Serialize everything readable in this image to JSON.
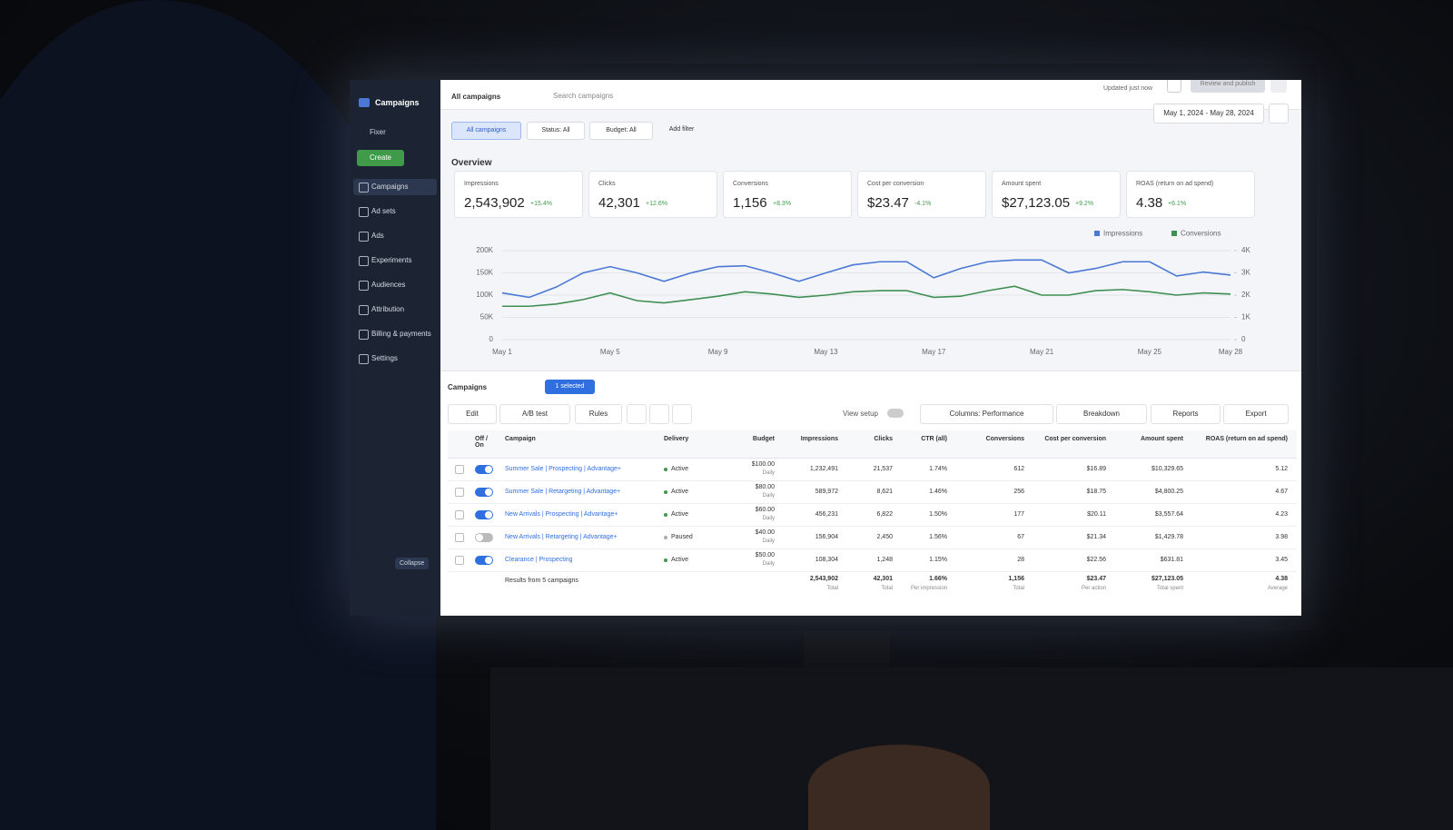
{
  "sidebar": {
    "brand": "Campaigns",
    "account": "Fixer",
    "create": "Create",
    "nav": [
      "Campaigns",
      "Ad sets",
      "Ads",
      "Experiments",
      "Audiences",
      "Attribution",
      "Billing & payments",
      "Settings"
    ],
    "collapse": "Collapse"
  },
  "topbar": {
    "title": "All campaigns",
    "search": "Search campaigns",
    "updated": "Updated just now",
    "publish": "Review and publish"
  },
  "filters": {
    "items": [
      "All campaigns",
      "Status: All",
      "Budget: All",
      "Add filter"
    ],
    "date_range": "May 1, 2024 - May 28, 2024"
  },
  "overview": {
    "title": "Overview",
    "metrics": [
      {
        "label": "Impressions",
        "value": "2,543,902",
        "change": "+15.4%"
      },
      {
        "label": "Clicks",
        "value": "42,301",
        "change": "+12.6%"
      },
      {
        "label": "Conversions",
        "value": "1,156",
        "change": "+8.3%"
      },
      {
        "label": "Cost per conversion",
        "value": "$23.47",
        "change": "-4.1%"
      },
      {
        "label": "Amount spent",
        "value": "$27,123.05",
        "change": "+9.2%"
      },
      {
        "label": "ROAS (return on ad spend)",
        "value": "4.38",
        "change": "+6.1%"
      }
    ]
  },
  "chart_data": {
    "type": "line",
    "categories": [
      "May 1",
      null,
      null,
      null,
      "May 5",
      null,
      null,
      null,
      "May 9",
      null,
      null,
      null,
      "May 13",
      null,
      null,
      null,
      "May 17",
      null,
      null,
      null,
      "May 21",
      null,
      null,
      null,
      "May 25",
      null,
      null,
      "May 28"
    ],
    "series": [
      {
        "name": "Impressions",
        "color": "#4a78d4",
        "values": [
          105000,
          95000,
          118000,
          150000,
          164000,
          150000,
          131000,
          150000,
          164000,
          166000,
          150000,
          131000,
          150000,
          168000,
          175000,
          175000,
          139000,
          160000,
          175000,
          179000,
          179000,
          150000,
          160000,
          175000,
          175000,
          143000,
          152000,
          145000
        ]
      },
      {
        "name": "Conversions",
        "color": "#3f8f53",
        "axis": "y2",
        "values": [
          1500,
          1500,
          1600,
          1800,
          2100,
          1750,
          1650,
          1800,
          1950,
          2150,
          2050,
          1900,
          2000,
          2150,
          2200,
          2200,
          1900,
          1950,
          2200,
          2400,
          2000,
          2000,
          2200,
          2250,
          2150,
          2000,
          2100,
          2050
        ]
      }
    ],
    "ylim": [
      0,
      200000
    ],
    "yticks": [
      0,
      {
        "value": 50000,
        "label": "50K"
      },
      {
        "value": 100000,
        "label": "100K"
      },
      {
        "value": 150000,
        "label": "150K"
      },
      {
        "value": 200000,
        "label": "200K"
      }
    ],
    "y2lim": [
      0,
      4000
    ],
    "y2ticks": [
      0,
      {
        "value": 1000,
        "label": "1K"
      },
      {
        "value": 2000,
        "label": "2K"
      },
      {
        "value": 3000,
        "label": "3K"
      },
      {
        "value": 4000,
        "label": "4K"
      }
    ],
    "grid": true,
    "legend": "top-right"
  },
  "campaigns": {
    "title": "Campaigns",
    "selected": "1 selected",
    "toolbar": [
      "Edit",
      "A/B test",
      "Rules"
    ],
    "view_setup": "View setup",
    "columns": "Columns: Performance",
    "breakdown": "Breakdown",
    "reports": "Reports",
    "export": "Export",
    "total": "Total",
    "table": {
      "header": [
        "Off / On",
        "Campaign",
        "Delivery",
        "Budget",
        "Impressions",
        "Clicks",
        "CTR (all)",
        "Conversions",
        "Cost per conversion",
        "Amount spent",
        "ROAS (return on ad spend)"
      ],
      "rows": [
        {
          "on": true,
          "cells": [
            "Summer Sale | Prospecting | Advantage+",
            "Active",
            "$100.00",
            "1,232,491",
            "21,537",
            "1.74%",
            "612",
            "$16.89",
            "$10,329.65",
            "5.12"
          ],
          "period": "Daily"
        },
        {
          "on": true,
          "cells": [
            "Summer Sale | Retargeting | Advantage+",
            "Active",
            "$80.00",
            "589,972",
            "8,621",
            "1.46%",
            "256",
            "$18.75",
            "$4,800.25",
            "4.67"
          ],
          "period": "Daily"
        },
        {
          "on": true,
          "cells": [
            "New Arrivals | Prospecting | Advantage+",
            "Active",
            "$60.00",
            "456,231",
            "6,822",
            "1.50%",
            "177",
            "$20.11",
            "$3,557.64",
            "4.23"
          ],
          "period": "Daily"
        },
        {
          "on": false,
          "cells": [
            "New Arrivals | Retargeting | Advantage+",
            "Paused",
            "$40.00",
            "156,904",
            "2,450",
            "1.56%",
            "67",
            "$21.34",
            "$1,429.78",
            "3.98"
          ],
          "period": "Daily"
        },
        {
          "on": true,
          "cells": [
            "Clearance | Prospecting",
            "Active",
            "$50.00",
            "108,304",
            "1,248",
            "1.15%",
            "28",
            "$22.56",
            "$631.81",
            "3.45"
          ],
          "period": "Daily"
        }
      ],
      "footer": {
        "label": "Results from 5 campaigns",
        "cells": [
          {
            "value": "2,543,902",
            "note": "Total"
          },
          {
            "value": "42,301",
            "note": "Total"
          },
          {
            "value": "1.66%",
            "note": "Per impression"
          },
          {
            "value": "1,156",
            "note": "Total"
          },
          {
            "value": "$23.47",
            "note": "Per action"
          },
          {
            "value": "$27,123.05",
            "note": "Total spent"
          },
          {
            "value": "4.38",
            "note": "Average"
          }
        ]
      }
    }
  }
}
